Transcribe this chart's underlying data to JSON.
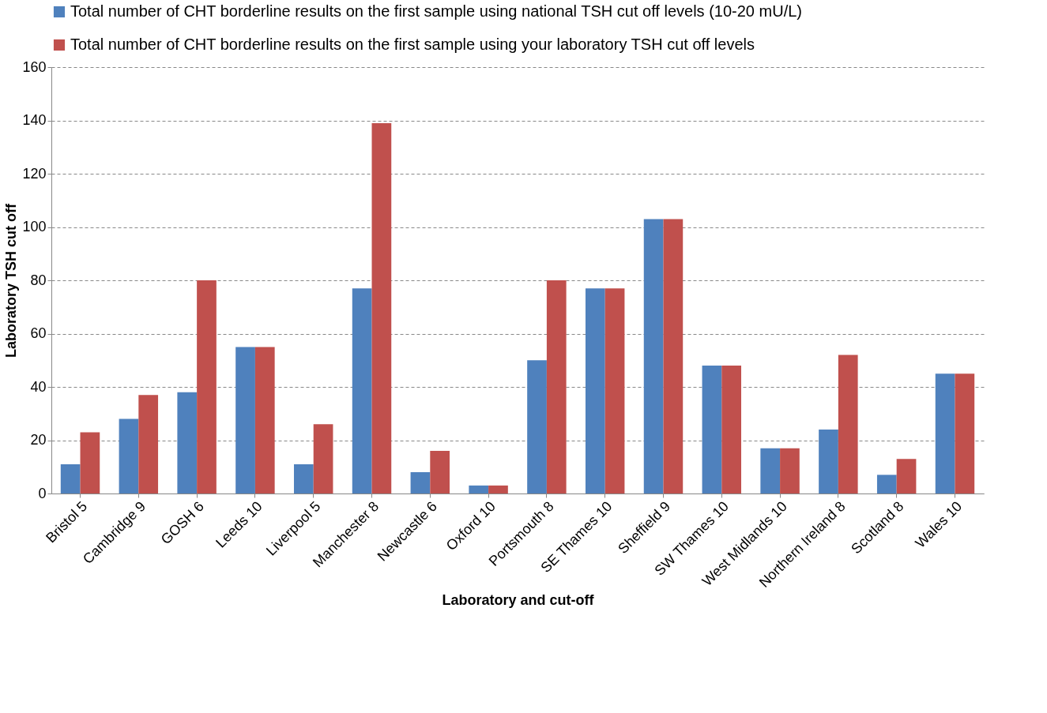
{
  "chart_data": {
    "type": "bar",
    "xlabel": "Laboratory and cut-off",
    "ylabel": "Laboratory TSH cut off",
    "categories": [
      "Bristol 5",
      "Cambridge 9",
      "GOSH 6",
      "Leeds 10",
      "Liverpool 5",
      "Manchester 8",
      "Newcastle 6",
      "Oxford 10",
      "Portsmouth 8",
      "SE Thames 10",
      "Sheffield 9",
      "SW Thames 10",
      "West Midlands 10",
      "Northern Ireland 8",
      "Scotland 8",
      "Wales 10"
    ],
    "series": [
      {
        "name": "Total number of CHT borderline results on the first sample using national TSH cut off levels (10-20 mU/L)",
        "color": "#4f81bd",
        "values": [
          11,
          28,
          38,
          55,
          11,
          77,
          8,
          3,
          50,
          77,
          103,
          48,
          17,
          24,
          7,
          45
        ]
      },
      {
        "name": "Total number of CHT borderline results on the first sample using your laboratory TSH cut off levels",
        "color": "#c0504d",
        "values": [
          23,
          37,
          80,
          55,
          26,
          139,
          16,
          3,
          80,
          77,
          103,
          48,
          17,
          52,
          13,
          45
        ]
      }
    ],
    "ylim": [
      0,
      160
    ],
    "yticks": [
      0,
      20,
      40,
      60,
      80,
      100,
      120,
      140,
      160
    ],
    "grid": "y",
    "legend": "top"
  }
}
